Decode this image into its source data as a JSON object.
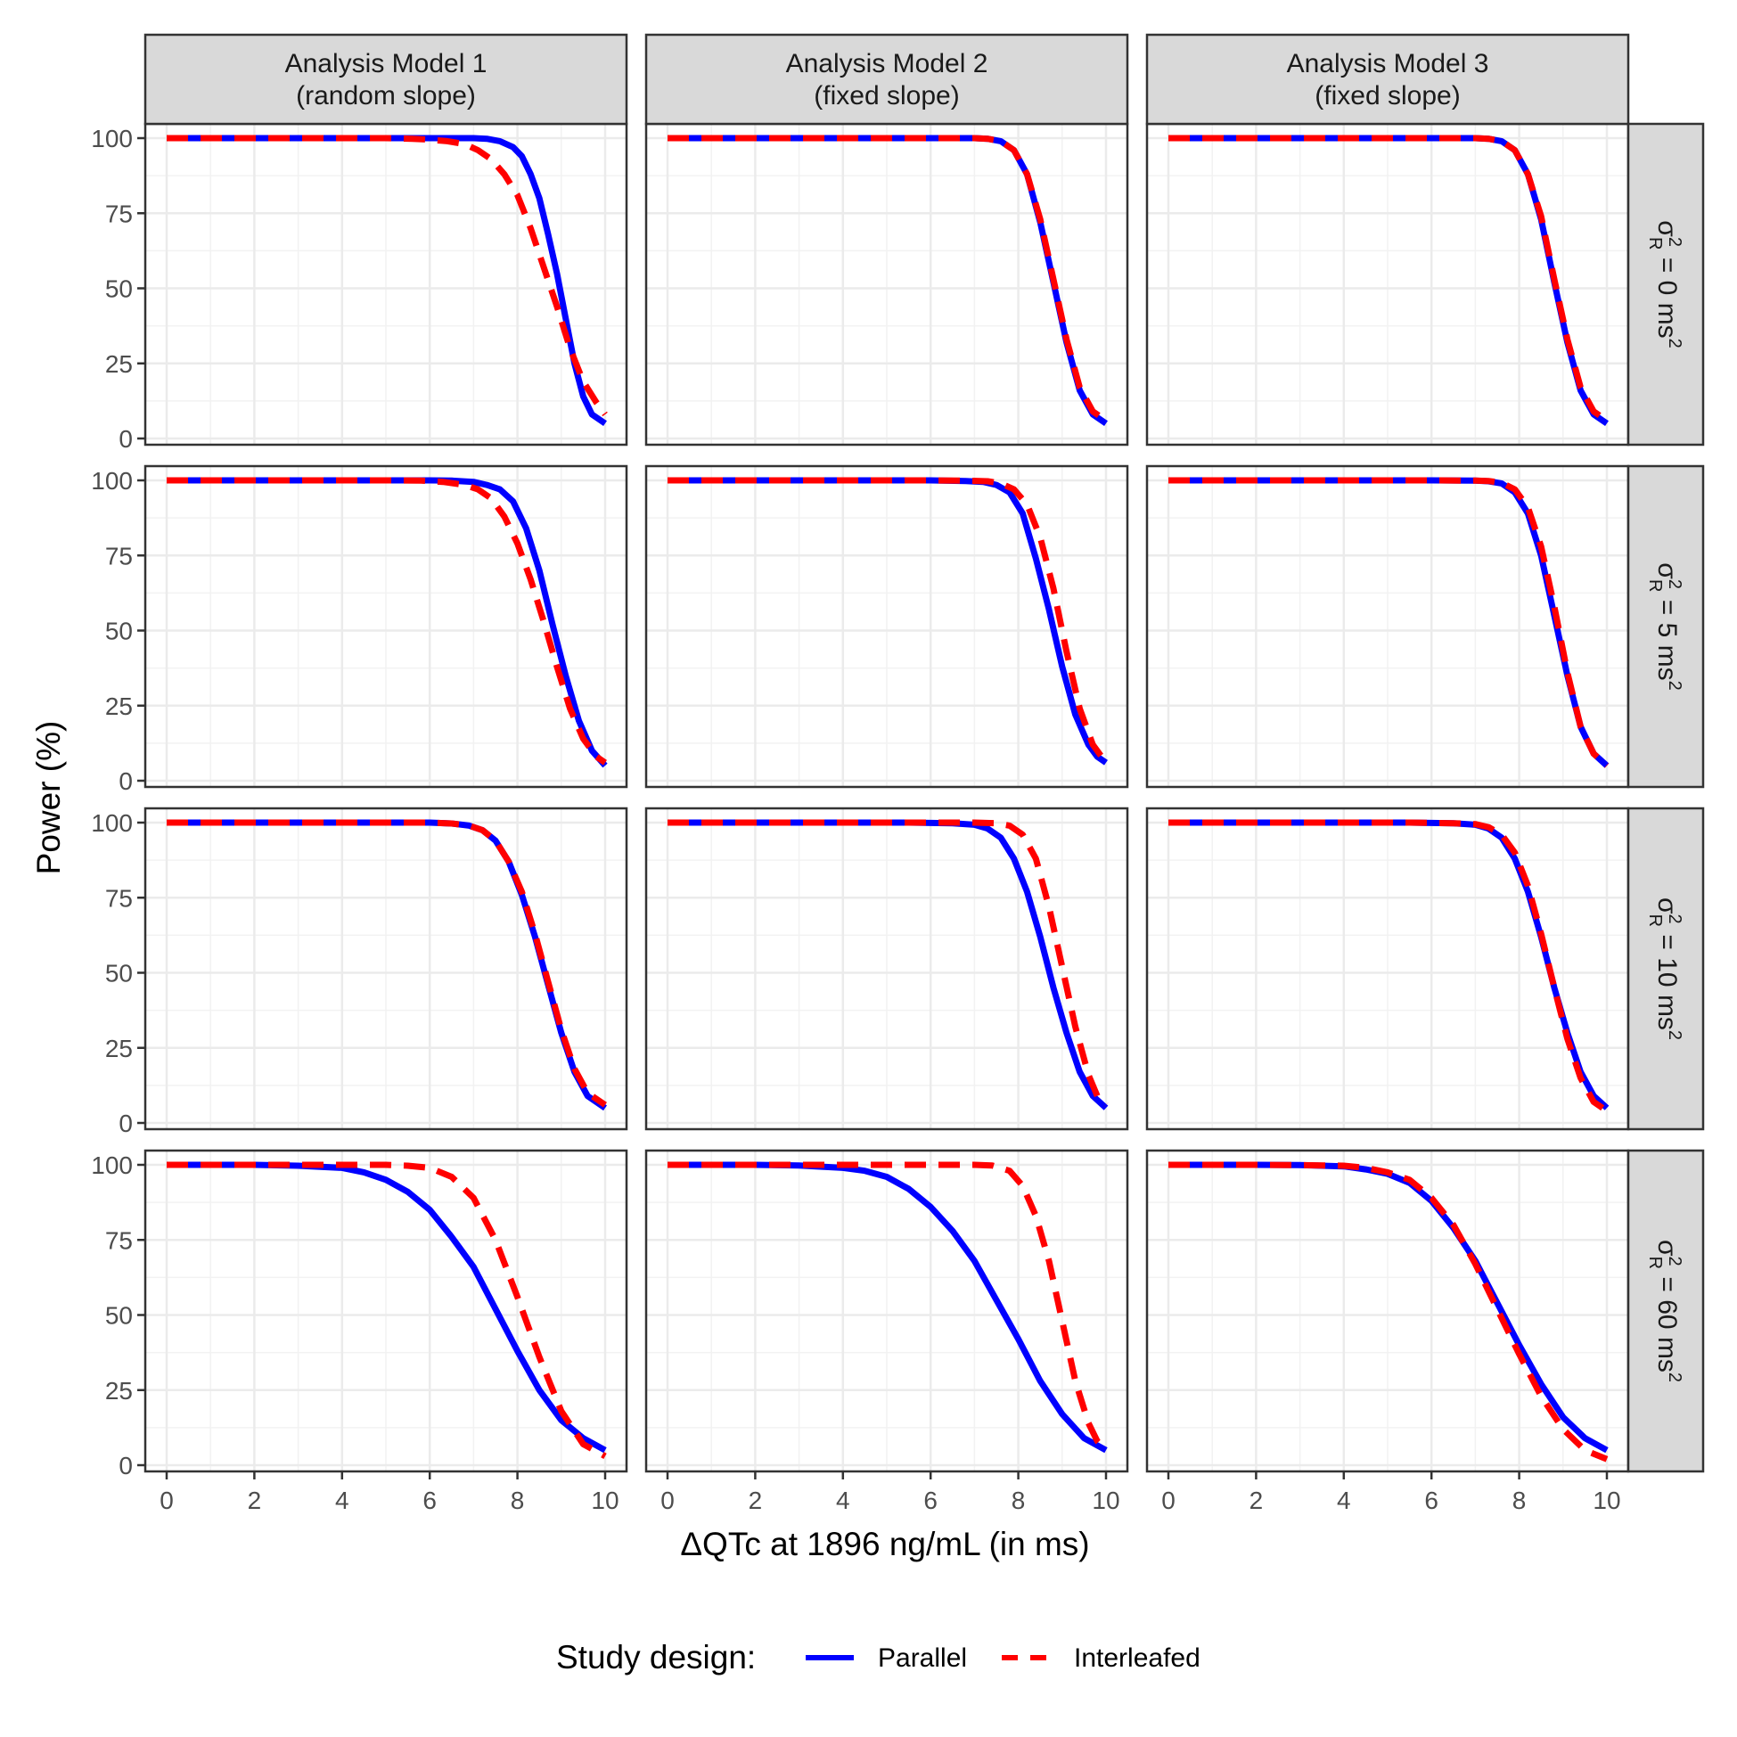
{
  "chart_data": {
    "type": "line",
    "layout": "facet-grid 4x3",
    "xlabel": "ΔQTc at 1896 ng/mL (in ms)",
    "ylabel": "Power (%)",
    "xlim": [
      0,
      10
    ],
    "ylim": [
      0,
      100
    ],
    "x_ticks": [
      "0",
      "2",
      "4",
      "6",
      "8",
      "10"
    ],
    "y_ticks": [
      "0",
      "25",
      "50",
      "75",
      "100"
    ],
    "grid": true,
    "legend": {
      "title": "Study design:",
      "position": "bottom",
      "entries": [
        {
          "name": "Parallel",
          "color": "#0000ff",
          "dash": "solid"
        },
        {
          "name": "Interleafed",
          "color": "#ff0000",
          "dash": "dashed"
        }
      ]
    },
    "columns": [
      {
        "line1": "Analysis Model 1",
        "line2": "(random slope)"
      },
      {
        "line1": "Analysis Model 2",
        "line2": "(fixed slope)"
      },
      {
        "line1": "Analysis Model 3",
        "line2": "(fixed slope)"
      }
    ],
    "rows": [
      {
        "value": "0"
      },
      {
        "value": "5"
      },
      {
        "value": "10"
      },
      {
        "value": "60"
      }
    ],
    "row_label": {
      "symbol": "σ",
      "sup": "2",
      "sub": "R",
      "eq": "=",
      "unit": "ms",
      "unit_sup": "2"
    },
    "panels": [
      [
        {
          "Parallel": {
            "x": [
              0,
              5,
              6,
              7,
              7.3,
              7.6,
              7.9,
              8.1,
              8.3,
              8.5,
              8.7,
              8.9,
              9.1,
              9.3,
              9.5,
              9.7,
              10
            ],
            "y": [
              100,
              100,
              100,
              100,
              99.8,
              99,
              97,
              94,
              88,
              80,
              68,
              55,
              40,
              25,
              14,
              8,
              5
            ]
          },
          "Interleafed": {
            "x": [
              0,
              5,
              5.6,
              6,
              6.4,
              6.8,
              7.1,
              7.4,
              7.7,
              8,
              8.3,
              8.6,
              8.9,
              9.2,
              9.5,
              9.8,
              10
            ],
            "y": [
              100,
              100,
              99.8,
              99.5,
              99,
              98,
              96,
              93,
              88,
              81,
              70,
              57,
              44,
              30,
              19,
              12,
              8
            ]
          }
        },
        {
          "Parallel": {
            "x": [
              0,
              6,
              7,
              7.3,
              7.6,
              7.9,
              8.2,
              8.5,
              8.8,
              9.1,
              9.4,
              9.7,
              10
            ],
            "y": [
              100,
              100,
              100,
              99.8,
              99,
              96,
              88,
              72,
              52,
              32,
              16,
              8,
              5
            ]
          },
          "Interleafed": {
            "x": [
              0,
              6,
              7,
              7.3,
              7.6,
              7.9,
              8.2,
              8.5,
              8.8,
              9.1,
              9.4,
              9.7,
              10
            ],
            "y": [
              100,
              100,
              100,
              99.8,
              99,
              96,
              88,
              73,
              53,
              33,
              17,
              9,
              6
            ]
          }
        },
        {
          "Parallel": {
            "x": [
              0,
              6,
              7,
              7.3,
              7.6,
              7.9,
              8.2,
              8.5,
              8.8,
              9.1,
              9.4,
              9.7,
              10
            ],
            "y": [
              100,
              100,
              100,
              99.8,
              99,
              96,
              88,
              73,
              52,
              32,
              16,
              8,
              5
            ]
          },
          "Interleafed": {
            "x": [
              0,
              6,
              7,
              7.3,
              7.6,
              7.9,
              8.2,
              8.5,
              8.8,
              9.1,
              9.4,
              9.7,
              10
            ],
            "y": [
              100,
              100,
              100,
              99.8,
              99,
              96,
              88,
              74,
              53,
              33,
              17,
              9,
              6
            ]
          }
        }
      ],
      [
        {
          "Parallel": {
            "x": [
              0,
              5,
              6,
              6.5,
              7,
              7.3,
              7.6,
              7.9,
              8.2,
              8.5,
              8.8,
              9.1,
              9.4,
              9.7,
              10
            ],
            "y": [
              100,
              100,
              100,
              99.9,
              99.5,
              98.5,
              97,
              93,
              84,
              70,
              52,
              35,
              20,
              10,
              5
            ]
          },
          "Interleafed": {
            "x": [
              0,
              5,
              5.8,
              6.3,
              6.8,
              7.1,
              7.4,
              7.7,
              8,
              8.3,
              8.6,
              8.9,
              9.2,
              9.5,
              9.8,
              10
            ],
            "y": [
              100,
              100,
              99.9,
              99.5,
              98.5,
              97,
              94,
              88,
              79,
              67,
              53,
              38,
              24,
              14,
              8,
              6
            ]
          }
        },
        {
          "Parallel": {
            "x": [
              0,
              6,
              6.8,
              7.2,
              7.5,
              7.8,
              8.1,
              8.4,
              8.7,
              9,
              9.3,
              9.6,
              9.8,
              10
            ],
            "y": [
              100,
              100,
              99.8,
              99.5,
              98.5,
              96,
              89,
              74,
              57,
              38,
              22,
              12,
              8,
              6
            ]
          },
          "Interleafed": {
            "x": [
              0,
              6,
              6.8,
              7.3,
              7.6,
              7.9,
              8.2,
              8.5,
              8.8,
              9.1,
              9.4,
              9.7,
              10
            ],
            "y": [
              100,
              100,
              99.9,
              99.7,
              99,
              97,
              92,
              81,
              64,
              43,
              24,
              12,
              6
            ]
          }
        },
        {
          "Parallel": {
            "x": [
              0,
              6,
              7,
              7.3,
              7.6,
              7.9,
              8.2,
              8.5,
              8.8,
              9.1,
              9.4,
              9.7,
              10
            ],
            "y": [
              100,
              100,
              99.9,
              99.7,
              99,
              96,
              89,
              75,
              55,
              35,
              18,
              9,
              5
            ]
          },
          "Interleafed": {
            "x": [
              0,
              6,
              7,
              7.3,
              7.6,
              7.9,
              8.2,
              8.5,
              8.8,
              9.1,
              9.4,
              9.7,
              10
            ],
            "y": [
              100,
              100,
              99.9,
              99.8,
              99.2,
              97,
              91,
              78,
              58,
              36,
              18,
              9,
              5
            ]
          }
        }
      ],
      [
        {
          "Parallel": {
            "x": [
              0,
              5,
              6,
              6.5,
              6.9,
              7.2,
              7.5,
              7.8,
              8.1,
              8.4,
              8.7,
              9,
              9.3,
              9.6,
              10
            ],
            "y": [
              100,
              100,
              100,
              99.7,
              99,
              97.5,
              94,
              87,
              76,
              62,
              46,
              30,
              17,
              9,
              5
            ]
          },
          "Interleafed": {
            "x": [
              0,
              5,
              6,
              6.5,
              6.9,
              7.2,
              7.5,
              7.8,
              8.1,
              8.4,
              8.7,
              9,
              9.3,
              9.6,
              10
            ],
            "y": [
              100,
              100,
              100,
              99.7,
              99,
              97.5,
              94,
              87,
              77,
              63,
              47,
              31,
              18,
              10,
              6
            ]
          }
        },
        {
          "Parallel": {
            "x": [
              0,
              5.5,
              6.5,
              7,
              7.3,
              7.6,
              7.9,
              8.2,
              8.5,
              8.8,
              9.1,
              9.4,
              9.7,
              10
            ],
            "y": [
              100,
              100,
              99.8,
              99.3,
              98,
              95,
              88,
              77,
              62,
              45,
              30,
              17,
              9,
              5
            ]
          },
          "Interleafed": {
            "x": [
              0,
              6,
              7,
              7.5,
              7.8,
              8.1,
              8.4,
              8.7,
              9,
              9.3,
              9.6,
              9.8,
              10
            ],
            "y": [
              100,
              100,
              100,
              99.8,
              99,
              96,
              88,
              72,
              52,
              32,
              16,
              9,
              6
            ]
          }
        },
        {
          "Parallel": {
            "x": [
              0,
              5.5,
              6.5,
              7,
              7.3,
              7.6,
              7.9,
              8.2,
              8.5,
              8.8,
              9.1,
              9.4,
              9.7,
              10
            ],
            "y": [
              100,
              100,
              99.8,
              99.3,
              98,
              95,
              88,
              77,
              62,
              45,
              30,
              17,
              9,
              5
            ]
          },
          "Interleafed": {
            "x": [
              0,
              5.5,
              6.5,
              7,
              7.3,
              7.6,
              7.9,
              8.2,
              8.5,
              8.8,
              9.1,
              9.4,
              9.7,
              10
            ],
            "y": [
              100,
              100,
              99.8,
              99.5,
              98.5,
              96,
              90,
              79,
              63,
              45,
              28,
              15,
              7,
              4
            ]
          }
        }
      ],
      [
        {
          "Parallel": {
            "x": [
              0,
              2,
              3,
              4,
              4.5,
              5,
              5.5,
              6,
              6.5,
              7,
              7.5,
              8,
              8.5,
              9,
              9.5,
              10
            ],
            "y": [
              100,
              100,
              99.7,
              99,
              97.5,
              95,
              91,
              85,
              76,
              66,
              52,
              38,
              25,
              15,
              9,
              5
            ]
          },
          "Interleafed": {
            "x": [
              0,
              4,
              5,
              5.5,
              6,
              6.5,
              7,
              7.5,
              8,
              8.5,
              9,
              9.5,
              10
            ],
            "y": [
              100,
              100,
              100,
              99.7,
              99,
              96,
              89,
              75,
              56,
              36,
              18,
              7,
              3
            ]
          }
        },
        {
          "Parallel": {
            "x": [
              0,
              2,
              3,
              4,
              4.5,
              5,
              5.5,
              6,
              6.5,
              7,
              7.5,
              8,
              8.5,
              9,
              9.5,
              10
            ],
            "y": [
              100,
              100,
              99.8,
              99,
              98,
              96,
              92,
              86,
              78,
              68,
              55,
              42,
              28,
              17,
              9,
              5
            ]
          },
          "Interleafed": {
            "x": [
              0,
              6,
              7,
              7.4,
              7.8,
              8.1,
              8.4,
              8.7,
              9,
              9.3,
              9.6,
              9.8,
              10
            ],
            "y": [
              100,
              100,
              100,
              99.8,
              98,
              93,
              83,
              68,
              48,
              28,
              14,
              8,
              5
            ]
          }
        },
        {
          "Parallel": {
            "x": [
              0,
              2,
              3,
              4,
              4.5,
              5,
              5.5,
              6,
              6.5,
              7,
              7.5,
              8,
              8.5,
              9,
              9.5,
              10
            ],
            "y": [
              100,
              100,
              99.9,
              99.5,
              98.5,
              97,
              94,
              88,
              79,
              68,
              54,
              40,
              27,
              16,
              9,
              5
            ]
          },
          "Interleafed": {
            "x": [
              0,
              2,
              3,
              4,
              4.5,
              5,
              5.5,
              6,
              6.5,
              7,
              7.5,
              8,
              8.5,
              9,
              9.5,
              10
            ],
            "y": [
              100,
              100,
              99.9,
              99.7,
              99,
              97.5,
              95,
              89,
              80,
              67,
              52,
              37,
              23,
              12,
              5,
              2
            ]
          }
        }
      ]
    ]
  }
}
